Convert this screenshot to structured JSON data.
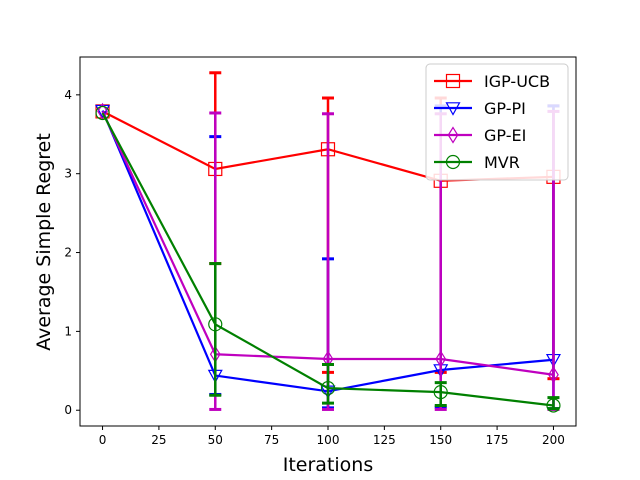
{
  "chart_data": {
    "type": "line",
    "title": "",
    "xlabel": "Iterations",
    "ylabel": "Average Simple Regret",
    "x": [
      0,
      50,
      100,
      150,
      200
    ],
    "xlim": [
      -10,
      210
    ],
    "ylim": [
      -0.2,
      4.48
    ],
    "xticks": [
      "0",
      "25",
      "50",
      "75",
      "100",
      "125",
      "150",
      "175",
      "200"
    ],
    "yticks": [
      "0",
      "1",
      "2",
      "3",
      "4"
    ],
    "grid": false,
    "legend_position": "top-right",
    "series": [
      {
        "name": "IGP-UCB",
        "color": "#ff0000",
        "marker": "square",
        "values": [
          3.79,
          3.06,
          3.31,
          2.91,
          2.96
        ],
        "err_low": [
          3.79,
          1.86,
          0.48,
          0.48,
          0.4
        ],
        "err_high": [
          3.79,
          4.28,
          3.96,
          3.96,
          3.86
        ]
      },
      {
        "name": "GP-PI",
        "color": "#0000ff",
        "marker": "triangle-down",
        "values": [
          3.8,
          0.44,
          0.24,
          0.51,
          0.64
        ],
        "err_low": [
          3.8,
          0.2,
          0.03,
          0.04,
          0.02
        ],
        "err_high": [
          3.8,
          3.47,
          1.92,
          3.86,
          3.86
        ]
      },
      {
        "name": "GP-EI",
        "color": "#bf00bf",
        "marker": "diamond",
        "values": [
          3.79,
          0.71,
          0.65,
          0.65,
          0.45
        ],
        "err_low": [
          3.79,
          0.01,
          0.01,
          0.01,
          0.01
        ],
        "err_high": [
          3.79,
          3.77,
          3.76,
          3.76,
          3.79
        ]
      },
      {
        "name": "MVR",
        "color": "#008000",
        "marker": "circle",
        "values": [
          3.77,
          1.09,
          0.28,
          0.23,
          0.06
        ],
        "err_low": [
          3.77,
          0.19,
          0.09,
          0.06,
          0.02
        ],
        "err_high": [
          3.77,
          1.86,
          0.58,
          0.35,
          0.16
        ]
      }
    ]
  }
}
